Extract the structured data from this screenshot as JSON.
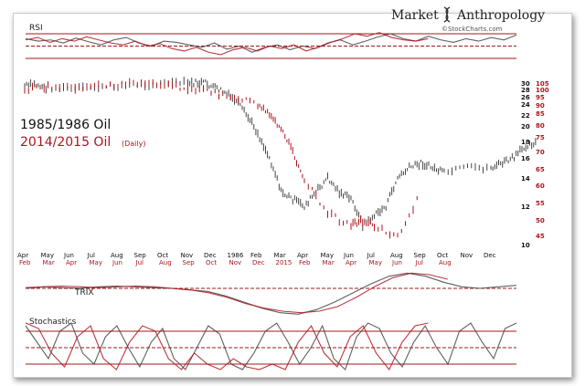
{
  "brand": {
    "title_left": "Market",
    "title_right": "Anthropology",
    "logo_icon": "dna-helix-icon",
    "credit": "©StockCharts.com"
  },
  "colors": {
    "black_series": "#333333",
    "red_series": "#b0141c",
    "panel_line": "#a01818"
  },
  "chart_data": [
    {
      "type": "line",
      "panel": "RSI",
      "title": "RSI",
      "levels": [
        70,
        50,
        30
      ],
      "series": [
        {
          "color": "black",
          "values": [
            62,
            58,
            60,
            55,
            63,
            57,
            52,
            60,
            64,
            55,
            50,
            58,
            56,
            52,
            48,
            55,
            45,
            50,
            40,
            48,
            52,
            44,
            50,
            46,
            55,
            60,
            52,
            58,
            65,
            70,
            62,
            58,
            66,
            60,
            56,
            62,
            58,
            64,
            60,
            68
          ]
        },
        {
          "color": "red",
          "values": [
            60,
            64,
            56,
            62,
            58,
            65,
            60,
            55,
            52,
            58,
            50,
            54,
            46,
            42,
            48,
            40,
            36,
            44,
            48,
            42,
            50,
            46,
            52,
            42,
            48,
            56,
            62,
            70,
            66,
            72,
            64,
            60,
            58,
            62
          ]
        }
      ]
    },
    {
      "type": "line",
      "panel": "price",
      "scale": "log",
      "legend": [
        {
          "text": "1985/1986 Oil",
          "color": "black"
        },
        {
          "text": "2014/2015 Oil",
          "suffix": "(Daily)",
          "color": "red"
        }
      ],
      "x_ticks_top": [
        "Apr",
        "May",
        "Jun",
        "Jul",
        "Aug",
        "Sep",
        "Oct",
        "Nov",
        "Dec",
        "1986",
        "Feb",
        "Mar",
        "Apr",
        "May",
        "Jun",
        "Jul",
        "Aug",
        "Sep",
        "Oct",
        "Nov",
        "Dec"
      ],
      "x_ticks_bottom": [
        "Feb",
        "Mar",
        "Apr",
        "May",
        "Jun",
        "Jul",
        "Aug",
        "Sep",
        "Oct",
        "Nov",
        "Dec",
        "2015",
        "Feb",
        "Mar",
        "Apr",
        "May",
        "Jun",
        "Jul",
        "Aug"
      ],
      "y_left_ticks": [
        30,
        28,
        26,
        24,
        22,
        20,
        18,
        16,
        14,
        12,
        10
      ],
      "y_right_ticks": [
        105,
        100,
        95,
        90,
        85,
        80,
        75,
        70,
        65,
        60,
        55,
        50,
        45
      ],
      "series": [
        {
          "name": "1985/1986 Oil",
          "color": "black",
          "axis": "left",
          "x": [
            0,
            0.5,
            1,
            2,
            3,
            4,
            5,
            6,
            7,
            7.5,
            8,
            8.5,
            9,
            9.5,
            10,
            10.5,
            11,
            11.5,
            12,
            12.5,
            13,
            13.5,
            14,
            14.5,
            15,
            15.5,
            16,
            16.5,
            17,
            17.5,
            18,
            19,
            20,
            20.5,
            21,
            21.5,
            22
          ],
          "y": [
            29,
            29.5,
            28.5,
            28,
            28.5,
            29,
            29.5,
            30,
            30,
            31,
            29,
            27.5,
            25,
            22,
            19,
            16,
            13,
            12.5,
            12,
            13,
            14,
            13,
            12.5,
            11,
            11.5,
            12,
            14,
            15,
            15.5,
            15,
            14.5,
            15,
            15,
            15.5,
            16,
            17.5,
            18
          ]
        },
        {
          "name": "2014/2015 Oil",
          "color": "red",
          "axis": "right",
          "x": [
            0,
            1,
            2,
            3,
            4,
            5,
            6,
            7,
            8,
            9,
            10,
            10.5,
            11,
            11.5,
            12,
            13,
            14,
            14.5,
            15,
            16,
            17
          ],
          "y": [
            100,
            102,
            101,
            103,
            104,
            106,
            104,
            101,
            98,
            95,
            90,
            84,
            78,
            70,
            62,
            52,
            48,
            50,
            48,
            45,
            58
          ]
        }
      ]
    },
    {
      "type": "line",
      "panel": "TRIX",
      "title": "TRIX",
      "levels": [
        0
      ],
      "series": [
        {
          "color": "black",
          "values": [
            0,
            0.1,
            0.05,
            0,
            0.1,
            0.15,
            0.1,
            0.05,
            0,
            -0.1,
            -0.2,
            -0.5,
            -0.9,
            -1.3,
            -1.6,
            -1.7,
            -1.4,
            -0.9,
            -0.3,
            0.3,
            0.8,
            1.0,
            0.8,
            0.4,
            0.1,
            0,
            0.1,
            0.2
          ]
        },
        {
          "color": "red",
          "values": [
            0.05,
            0.1,
            0.15,
            0.1,
            0.05,
            0.1,
            0.15,
            0.1,
            0,
            -0.1,
            -0.3,
            -0.6,
            -1.0,
            -1.3,
            -1.5,
            -1.6,
            -1.5,
            -1.2,
            -0.6,
            0.1,
            0.7,
            1.0,
            0.9,
            0.6
          ]
        }
      ]
    },
    {
      "type": "line",
      "panel": "Stochastics",
      "title": "Stochastics",
      "levels": [
        80,
        50,
        20
      ],
      "series": [
        {
          "color": "black",
          "values": [
            90,
            60,
            30,
            80,
            95,
            40,
            20,
            70,
            90,
            50,
            15,
            60,
            85,
            30,
            10,
            50,
            90,
            75,
            20,
            10,
            40,
            80,
            95,
            60,
            20,
            50,
            90,
            30,
            10,
            70,
            95,
            85,
            40,
            15,
            60,
            90,
            50,
            20,
            80,
            95,
            60,
            30,
            85,
            95
          ]
        },
        {
          "color": "red",
          "values": [
            95,
            85,
            40,
            15,
            70,
            90,
            30,
            10,
            60,
            90,
            80,
            30,
            10,
            40,
            20,
            10,
            30,
            15,
            10,
            20,
            10,
            60,
            90,
            40,
            15,
            70,
            90,
            40,
            10,
            60,
            90,
            95
          ]
        }
      ]
    }
  ]
}
